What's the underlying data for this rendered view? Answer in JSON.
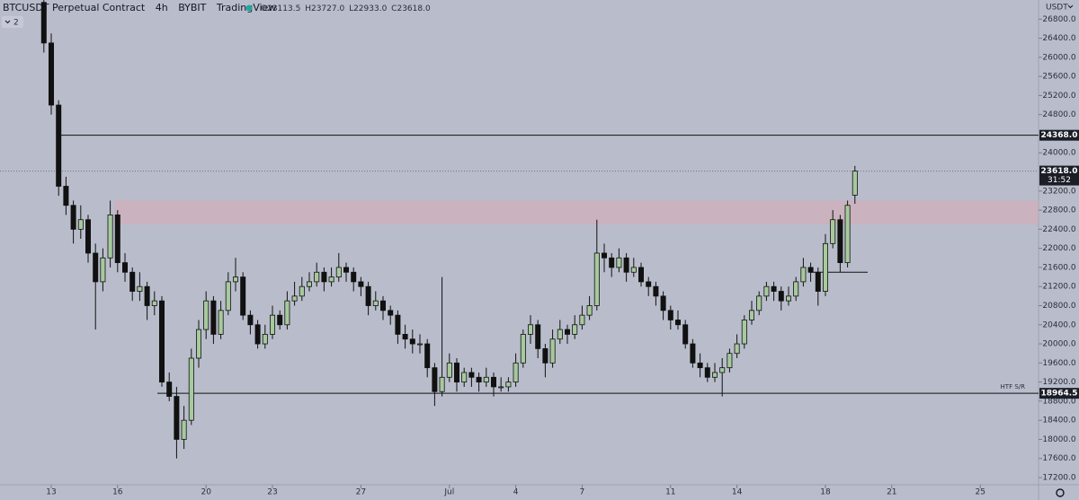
{
  "header": {
    "symbol": "BTCUSDT Perpetual Contract",
    "interval": "4h",
    "exchange": "BYBIT",
    "source": "TradingView",
    "indicator_count": "2",
    "currency": "USDT",
    "ohlc": [
      {
        "key": "O",
        "value": "23113.5"
      },
      {
        "key": "H",
        "value": "23727.0"
      },
      {
        "key": "L",
        "value": "22933.0"
      },
      {
        "key": "C",
        "value": "23618.0"
      }
    ]
  },
  "chart_data": {
    "type": "candlestick",
    "up_color": "#a6c99d",
    "down_color": "#111111",
    "categories": [
      null,
      "13",
      null,
      null,
      null,
      null,
      null,
      null,
      null,
      null,
      "16",
      null,
      null,
      null,
      null,
      null,
      null,
      null,
      null,
      null,
      null,
      null,
      "20",
      null,
      null,
      null,
      null,
      null,
      null,
      null,
      null,
      "23",
      null,
      null,
      null,
      null,
      null,
      null,
      null,
      null,
      null,
      null,
      null,
      "27",
      null,
      null,
      null,
      null,
      null,
      null,
      null,
      null,
      null,
      null,
      null,
      "Jul",
      null,
      null,
      null,
      null,
      null,
      null,
      null,
      null,
      "4",
      null,
      null,
      null,
      null,
      null,
      null,
      null,
      null,
      "7",
      null,
      null,
      null,
      null,
      null,
      null,
      null,
      null,
      null,
      null,
      null,
      "11",
      null,
      null,
      null,
      null,
      null,
      null,
      null,
      null,
      "14",
      null,
      null,
      null,
      null,
      null,
      null,
      null,
      null,
      null,
      null,
      null,
      "18",
      null,
      null,
      null,
      null,
      null,
      null,
      null,
      null,
      "21",
      null,
      null,
      null,
      null,
      null,
      null,
      null,
      null,
      null,
      null,
      null,
      "25"
    ],
    "candles": [
      [
        27150,
        27200,
        26100,
        26300
      ],
      [
        26300,
        26500,
        24800,
        25000
      ],
      [
        25000,
        25100,
        23100,
        23300
      ],
      [
        23300,
        23500,
        22700,
        22900
      ],
      [
        22900,
        23000,
        22100,
        22400
      ],
      [
        22400,
        22900,
        22200,
        22600
      ],
      [
        22600,
        22700,
        21700,
        21900
      ],
      [
        21900,
        22100,
        20300,
        21300
      ],
      [
        21300,
        22000,
        21100,
        21800
      ],
      [
        21800,
        23000,
        21600,
        22700
      ],
      [
        22700,
        22800,
        21500,
        21700
      ],
      [
        21700,
        21900,
        21300,
        21500
      ],
      [
        21500,
        21600,
        20900,
        21100
      ],
      [
        21100,
        21500,
        20900,
        21200
      ],
      [
        21200,
        21300,
        20500,
        20800
      ],
      [
        20800,
        21100,
        20600,
        20900
      ],
      [
        20900,
        21000,
        19100,
        19200
      ],
      [
        19200,
        19400,
        18800,
        18900
      ],
      [
        18900,
        19100,
        17600,
        18000
      ],
      [
        18000,
        18700,
        17800,
        18400
      ],
      [
        18400,
        19900,
        18300,
        19700
      ],
      [
        19700,
        20500,
        19500,
        20300
      ],
      [
        20300,
        21100,
        20100,
        20900
      ],
      [
        20900,
        21000,
        20000,
        20200
      ],
      [
        20200,
        20900,
        20100,
        20700
      ],
      [
        20700,
        21500,
        20600,
        21300
      ],
      [
        21300,
        21800,
        21100,
        21400
      ],
      [
        21400,
        21500,
        20500,
        20600
      ],
      [
        20600,
        20700,
        20200,
        20400
      ],
      [
        20400,
        20500,
        19900,
        20000
      ],
      [
        20000,
        20400,
        19900,
        20200
      ],
      [
        20200,
        20800,
        20100,
        20600
      ],
      [
        20600,
        20700,
        20300,
        20400
      ],
      [
        20400,
        21100,
        20300,
        20900
      ],
      [
        20900,
        21300,
        20800,
        21000
      ],
      [
        21000,
        21400,
        20900,
        21200
      ],
      [
        21200,
        21500,
        21100,
        21300
      ],
      [
        21300,
        21700,
        21200,
        21500
      ],
      [
        21500,
        21600,
        21100,
        21300
      ],
      [
        21300,
        21600,
        21200,
        21400
      ],
      [
        21400,
        21900,
        21300,
        21600
      ],
      [
        21600,
        21700,
        21300,
        21500
      ],
      [
        21500,
        21600,
        21100,
        21300
      ],
      [
        21300,
        21400,
        21000,
        21200
      ],
      [
        21200,
        21300,
        20600,
        20800
      ],
      [
        20800,
        21100,
        20700,
        20900
      ],
      [
        20900,
        21000,
        20500,
        20700
      ],
      [
        20700,
        20800,
        20400,
        20600
      ],
      [
        20600,
        20700,
        20000,
        20200
      ],
      [
        20200,
        20400,
        19900,
        20100
      ],
      [
        20100,
        20300,
        19800,
        20000
      ],
      [
        20000,
        20200,
        19800,
        20000
      ],
      [
        20000,
        20100,
        19300,
        19500
      ],
      [
        19500,
        19600,
        18700,
        19000
      ],
      [
        19000,
        21400,
        18900,
        19300
      ],
      [
        19300,
        19800,
        19200,
        19600
      ],
      [
        19600,
        19700,
        19000,
        19200
      ],
      [
        19200,
        19500,
        19100,
        19400
      ],
      [
        19400,
        19500,
        19100,
        19300
      ],
      [
        19300,
        19400,
        19000,
        19200
      ],
      [
        19200,
        19500,
        19100,
        19300
      ],
      [
        19300,
        19400,
        18900,
        19100
      ],
      [
        19100,
        19300,
        19000,
        19100
      ],
      [
        19100,
        19300,
        19000,
        19200
      ],
      [
        19200,
        19800,
        19100,
        19600
      ],
      [
        19600,
        20300,
        19500,
        20200
      ],
      [
        20200,
        20600,
        20000,
        20400
      ],
      [
        20400,
        20500,
        19700,
        19900
      ],
      [
        19900,
        20000,
        19300,
        19600
      ],
      [
        19600,
        20300,
        19500,
        20100
      ],
      [
        20100,
        20500,
        20000,
        20300
      ],
      [
        20300,
        20400,
        20000,
        20200
      ],
      [
        20200,
        20600,
        20100,
        20400
      ],
      [
        20400,
        20800,
        20300,
        20600
      ],
      [
        20600,
        21000,
        20500,
        20800
      ],
      [
        20800,
        22600,
        20700,
        21900
      ],
      [
        21900,
        22100,
        21500,
        21800
      ],
      [
        21800,
        21900,
        21400,
        21600
      ],
      [
        21600,
        22000,
        21500,
        21800
      ],
      [
        21800,
        21900,
        21300,
        21500
      ],
      [
        21500,
        21800,
        21400,
        21600
      ],
      [
        21600,
        21700,
        21200,
        21300
      ],
      [
        21300,
        21400,
        21000,
        21200
      ],
      [
        21200,
        21300,
        20800,
        21000
      ],
      [
        21000,
        21100,
        20500,
        20700
      ],
      [
        20700,
        20800,
        20300,
        20500
      ],
      [
        20500,
        20700,
        20300,
        20400
      ],
      [
        20400,
        20500,
        19900,
        20000
      ],
      [
        20000,
        20100,
        19500,
        19600
      ],
      [
        19600,
        19800,
        19300,
        19500
      ],
      [
        19500,
        19600,
        19200,
        19300
      ],
      [
        19300,
        19600,
        19200,
        19400
      ],
      [
        19400,
        19700,
        18900,
        19500
      ],
      [
        19500,
        19900,
        19400,
        19800
      ],
      [
        19800,
        20200,
        19700,
        20000
      ],
      [
        20000,
        20600,
        19900,
        20500
      ],
      [
        20500,
        20900,
        20400,
        20700
      ],
      [
        20700,
        21100,
        20600,
        21000
      ],
      [
        21000,
        21300,
        20900,
        21200
      ],
      [
        21200,
        21300,
        20900,
        21100
      ],
      [
        21100,
        21200,
        20700,
        20900
      ],
      [
        20900,
        21200,
        20800,
        21000
      ],
      [
        21000,
        21400,
        20900,
        21300
      ],
      [
        21300,
        21800,
        21200,
        21600
      ],
      [
        21600,
        21700,
        21300,
        21500
      ],
      [
        21500,
        21600,
        20800,
        21100
      ],
      [
        21100,
        22300,
        21000,
        22100
      ],
      [
        22100,
        22800,
        22000,
        22600
      ],
      [
        22600,
        22700,
        21500,
        21700
      ],
      [
        21700,
        23000,
        21600,
        22900
      ],
      [
        23113.5,
        23727,
        22933,
        23618
      ],
      null,
      null,
      null,
      null,
      null,
      null,
      null,
      null,
      null,
      null,
      null,
      null,
      null,
      null,
      null,
      null,
      null
    ],
    "ylim": [
      17050,
      27200
    ],
    "yticks": [
      {
        "value": 17200,
        "label": "17200.0"
      },
      {
        "value": 17600,
        "label": "17600.0"
      },
      {
        "value": 18000,
        "label": "18000.0"
      },
      {
        "value": 18400,
        "label": "18400.0"
      },
      {
        "value": 18800,
        "label": "18800.0"
      },
      {
        "value": 19200,
        "label": "19200.0"
      },
      {
        "value": 19600,
        "label": "19600.0"
      },
      {
        "value": 20000,
        "label": "20000.0"
      },
      {
        "value": 20400,
        "label": "20400.0"
      },
      {
        "value": 20800,
        "label": "20800.0"
      },
      {
        "value": 21200,
        "label": "21200.0"
      },
      {
        "value": 21600,
        "label": "21600.0"
      },
      {
        "value": 22000,
        "label": "22000.0"
      },
      {
        "value": 22400,
        "label": "22400.0"
      },
      {
        "value": 22800,
        "label": "22800.0"
      },
      {
        "value": 23200,
        "label": "23200.0"
      },
      {
        "value": 24000,
        "label": "24000.0"
      },
      {
        "value": 24800,
        "label": "24800.0"
      },
      {
        "value": 25200,
        "label": "25200.0"
      },
      {
        "value": 25600,
        "label": "25600.0"
      },
      {
        "value": 26000,
        "label": "26000.0"
      },
      {
        "value": 26400,
        "label": "26400.0"
      },
      {
        "value": 26800,
        "label": "26800.0"
      }
    ],
    "levels": [
      {
        "value": 24368,
        "label": "24368.0"
      },
      {
        "value": 18964.5,
        "label": "18964.5",
        "text": "HTF S/R"
      }
    ],
    "zone": [
      22500,
      23000
    ],
    "short_level": 21500,
    "current": {
      "value": 23618,
      "label": "23618.0",
      "countdown": "31:52"
    }
  }
}
